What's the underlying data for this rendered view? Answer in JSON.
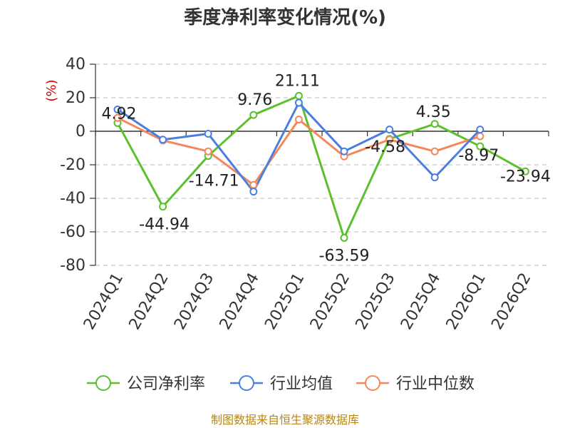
{
  "chart_data": {
    "type": "line",
    "title": "季度净利率变化情况(%)",
    "ylabel": "(%)",
    "categories": [
      "2024Q1",
      "2024Q2",
      "2024Q3",
      "2024Q4",
      "2025Q1",
      "2025Q2",
      "2025Q3",
      "2025Q4",
      "2026Q1",
      "2026Q2"
    ],
    "ylim": [
      -80,
      40
    ],
    "yticks": [
      40,
      20,
      0,
      -20,
      -40,
      -60,
      -80
    ],
    "grid": true,
    "legend": "bottom",
    "series": [
      {
        "name": "公司净利率",
        "color": "#5cc02d",
        "values": [
          4.92,
          -44.94,
          -14.71,
          9.76,
          21.11,
          -63.59,
          -4.58,
          4.35,
          -8.97,
          -23.94
        ],
        "labels": [
          "4.92",
          "-44.94",
          "-14.71",
          "9.76",
          "21.11",
          "-63.59",
          "-4.58",
          "4.35",
          "-8.97",
          "-23.94"
        ]
      },
      {
        "name": "行业均值",
        "color": "#4a7fe0",
        "values": [
          13,
          -5,
          -1.5,
          -36,
          17,
          -12,
          1,
          -27.5,
          1,
          null
        ]
      },
      {
        "name": "行业中位数",
        "color": "#f5885a",
        "values": [
          8,
          -5.5,
          -12,
          -32,
          7,
          -15,
          -5,
          -12,
          -3,
          null
        ]
      }
    ],
    "source": "制图数据来自恒生聚源数据库"
  }
}
